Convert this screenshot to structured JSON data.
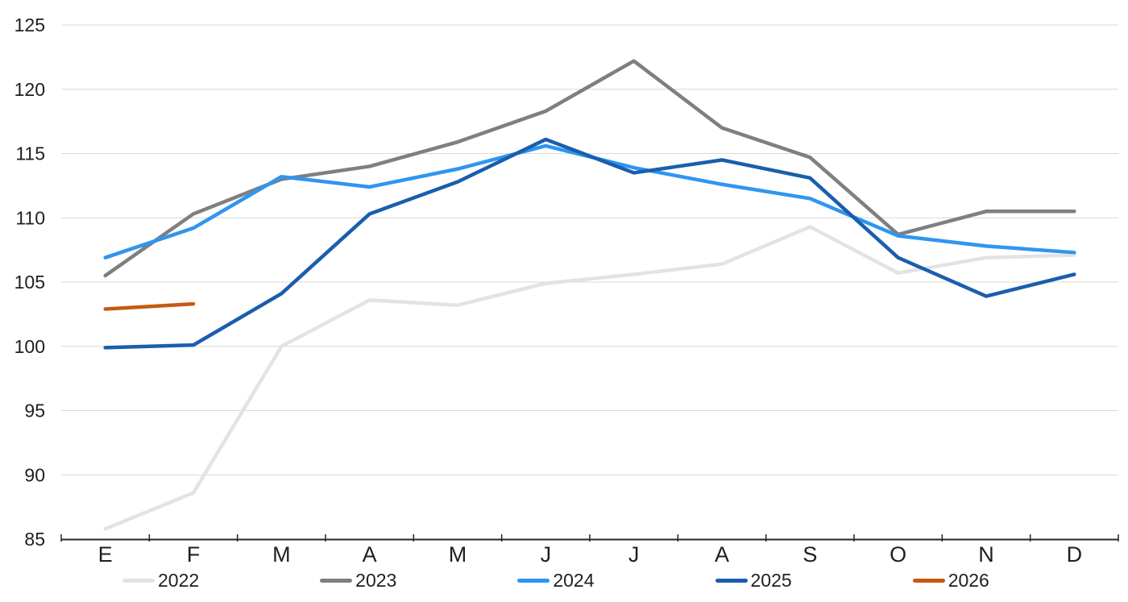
{
  "chart_data": {
    "type": "line",
    "title": "",
    "xlabel": "",
    "ylabel": "",
    "categories": [
      "E",
      "F",
      "M",
      "A",
      "M",
      "J",
      "J",
      "A",
      "S",
      "O",
      "N",
      "D"
    ],
    "series": [
      {
        "name": "2022",
        "color": "#E3E3E3",
        "values": [
          85.8,
          88.6,
          100.0,
          103.6,
          103.2,
          104.9,
          105.6,
          106.4,
          109.3,
          105.7,
          106.9,
          107.1
        ]
      },
      {
        "name": "2023",
        "color": "#7F7F7F",
        "values": [
          105.5,
          110.3,
          113.0,
          114.0,
          115.9,
          118.3,
          122.2,
          117.0,
          114.7,
          108.7,
          110.5,
          110.5
        ]
      },
      {
        "name": "2024",
        "color": "#2E96F0",
        "values": [
          106.9,
          109.2,
          113.2,
          112.4,
          113.8,
          115.6,
          113.9,
          112.6,
          111.5,
          108.6,
          107.8,
          107.3
        ]
      },
      {
        "name": "2025",
        "color": "#1A5EAC",
        "values": [
          99.9,
          100.1,
          104.1,
          110.3,
          112.8,
          116.1,
          113.5,
          114.5,
          113.1,
          106.9,
          103.9,
          105.6
        ]
      },
      {
        "name": "2026",
        "color": "#C55A11",
        "values": [
          102.9,
          103.3,
          null,
          null,
          null,
          null,
          null,
          null,
          null,
          null,
          null,
          null
        ]
      }
    ],
    "ylim": [
      85,
      125
    ],
    "y_ticks": [
      85,
      90,
      95,
      100,
      105,
      110,
      115,
      120,
      125
    ],
    "grid": true,
    "legend_position": "bottom",
    "style": {
      "gridline_color": "#D9D9D9",
      "axis_color": "#262626",
      "tick_label_color": "#1f1f1f"
    }
  }
}
